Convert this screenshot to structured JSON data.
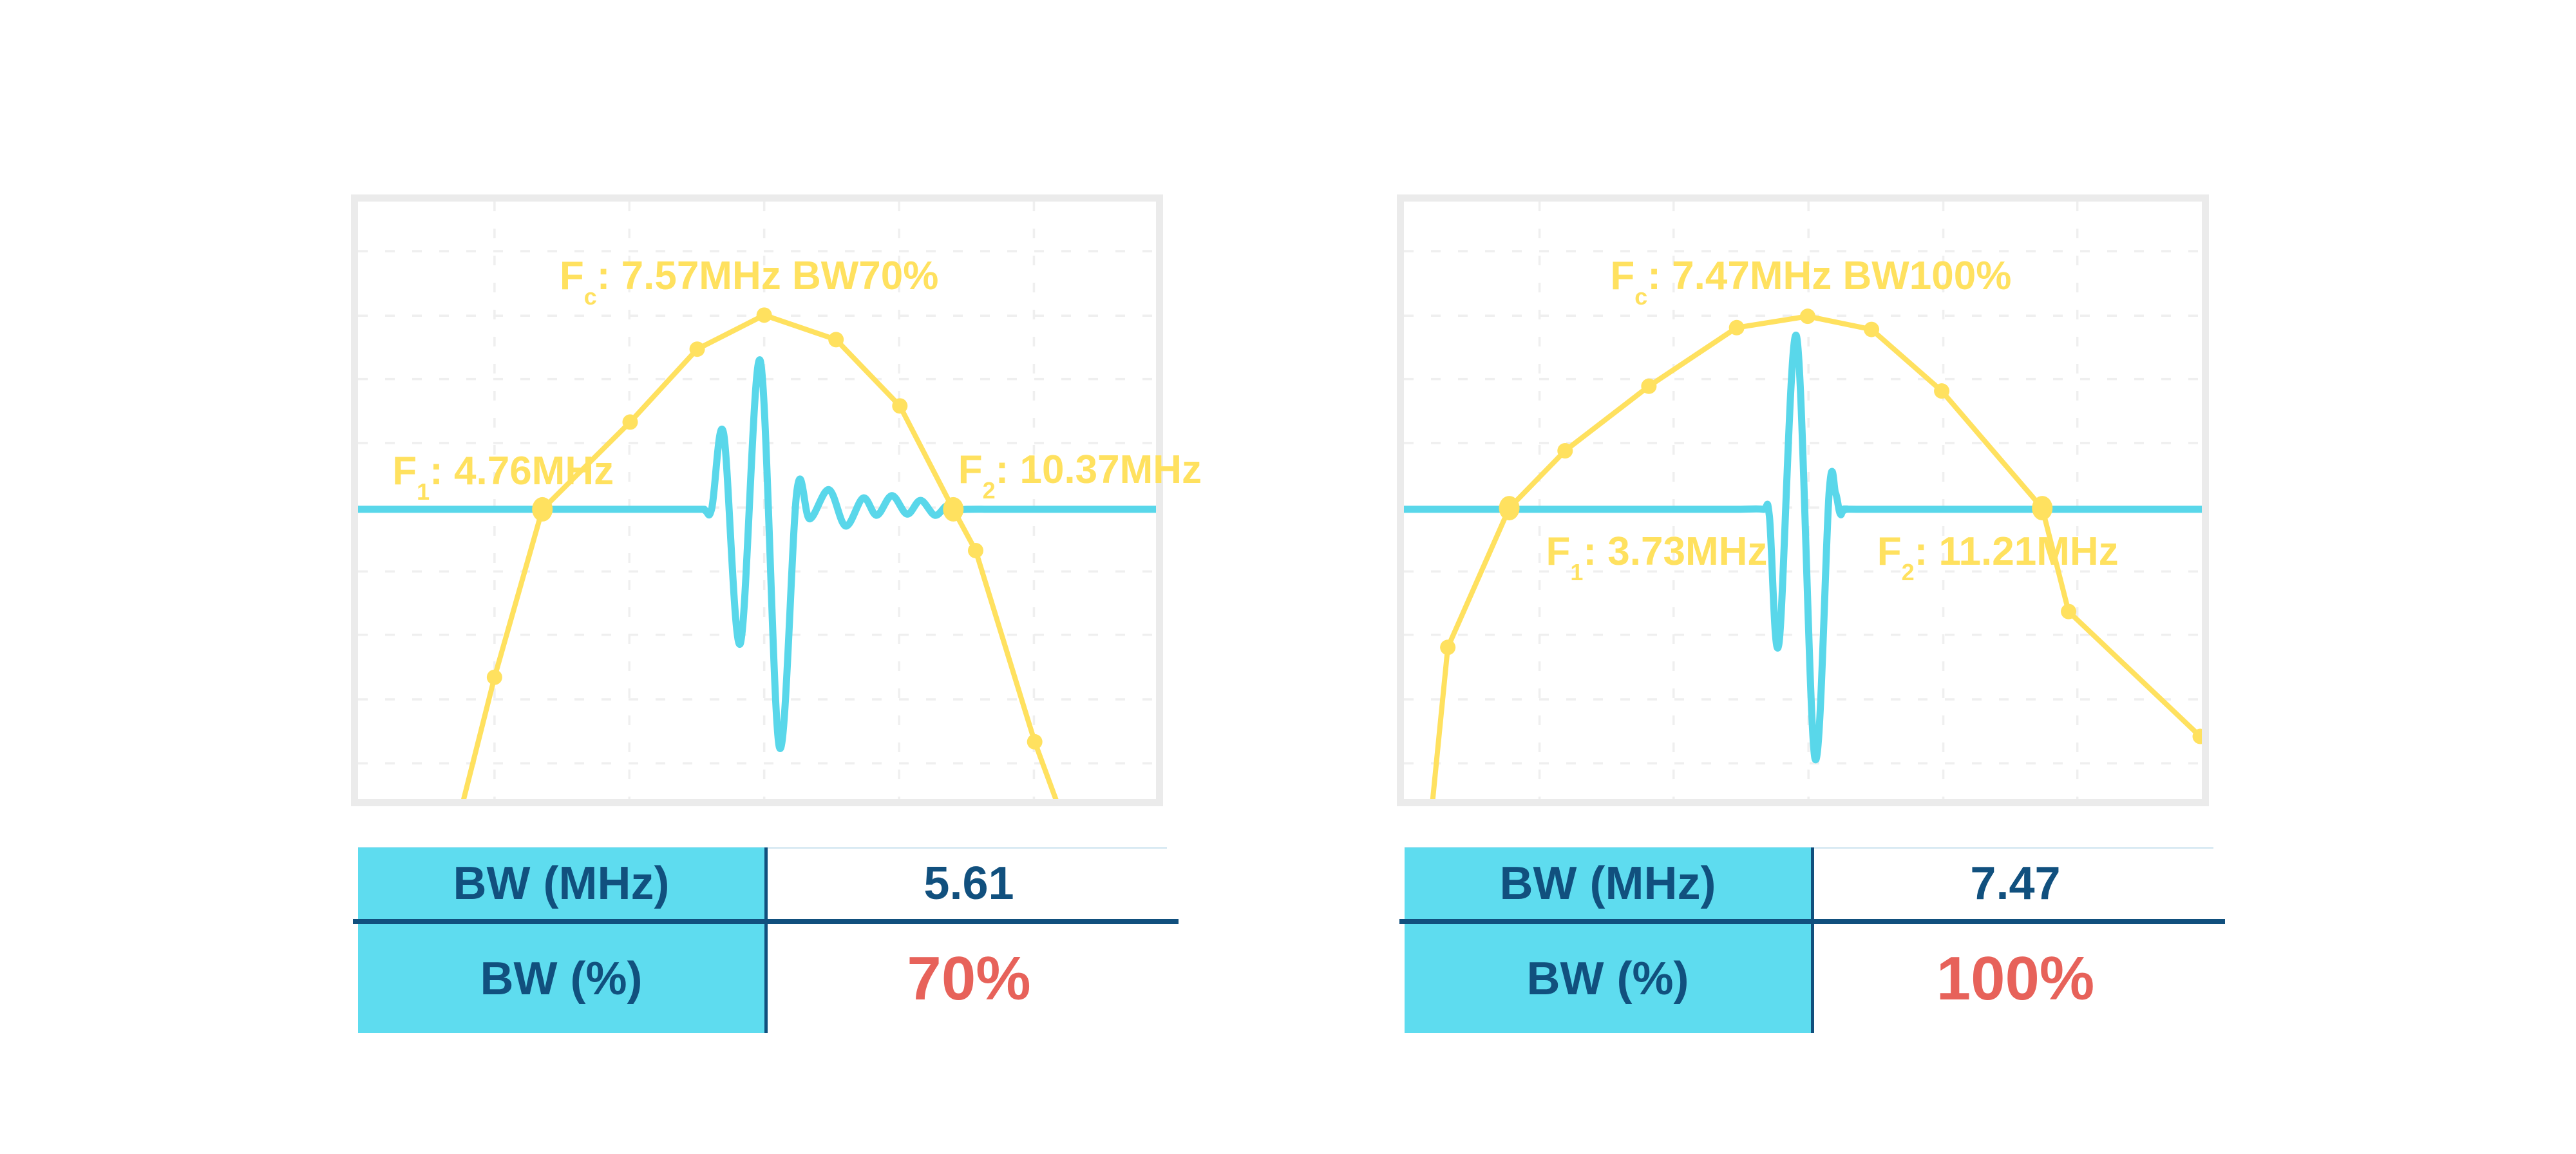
{
  "colors": {
    "yellow": "#FFE15F",
    "cyan": "#59D7EA",
    "cyanfill": "#5EDCEF",
    "navy": "#11507E",
    "red": "#E7625A",
    "border": "#EBEBEB",
    "grid": "#EFEFEF",
    "tline": "#D9EAF3"
  },
  "chart_data": [
    {
      "type": "line",
      "panel": "bw70",
      "x_unit": "MHz",
      "fc_mhz": 7.57,
      "f1_mhz": 4.76,
      "f2_mhz": 10.37,
      "bw_mhz": 5.61,
      "bw_pct": 70,
      "annotations": {
        "fc": {
          "base": "F",
          "sub": "c",
          "text": ": 7.57MHz BW70%",
          "x": 0.49,
          "y": 0.129,
          "anchor": "center"
        },
        "f1": {
          "base": "F",
          "sub": "1",
          "text": ": 4.76MHz",
          "x": 0.043,
          "y": 0.456,
          "anchor": "left"
        },
        "f2": {
          "base": "F",
          "sub": "2",
          "text": ": 10.37MHz",
          "x": 0.752,
          "y": 0.454,
          "anchor": "left"
        }
      },
      "grid": {
        "v": [
          0.171,
          0.34,
          0.509,
          0.678,
          0.847
        ],
        "h": [
          0.083,
          0.191,
          0.297,
          0.404,
          0.512,
          0.619,
          0.725,
          0.833,
          0.94
        ]
      },
      "series": [
        {
          "name": "spectrum",
          "points": [
            [
              0.132,
              1.002
            ],
            [
              0.171,
              0.796
            ],
            [
              0.231,
              0.515
            ],
            [
              0.341,
              0.369
            ],
            [
              0.425,
              0.247
            ],
            [
              0.509,
              0.19
            ],
            [
              0.599,
              0.231
            ],
            [
              0.679,
              0.342
            ],
            [
              0.746,
              0.515
            ],
            [
              0.774,
              0.584
            ],
            [
              0.848,
              0.904
            ],
            [
              0.875,
              1.002
            ]
          ],
          "dots": [
            [
              0.171,
              0.796
            ],
            [
              0.341,
              0.369
            ],
            [
              0.425,
              0.247
            ],
            [
              0.509,
              0.19
            ],
            [
              0.599,
              0.231
            ],
            [
              0.679,
              0.342
            ],
            [
              0.774,
              0.584
            ],
            [
              0.848,
              0.904
            ]
          ],
          "big_dots": [
            [
              0.231,
              0.515
            ],
            [
              0.746,
              0.515
            ]
          ]
        },
        {
          "name": "pulse_echo",
          "smooth": true,
          "points": [
            [
              0.0,
              0.515
            ],
            [
              0.39,
              0.515
            ],
            [
              0.431,
              0.515
            ],
            [
              0.443,
              0.515
            ],
            [
              0.458,
              0.387
            ],
            [
              0.479,
              0.74
            ],
            [
              0.504,
              0.266
            ],
            [
              0.528,
              0.913
            ],
            [
              0.55,
              0.484
            ],
            [
              0.566,
              0.531
            ],
            [
              0.59,
              0.482
            ],
            [
              0.611,
              0.543
            ],
            [
              0.633,
              0.496
            ],
            [
              0.65,
              0.525
            ],
            [
              0.669,
              0.492
            ],
            [
              0.688,
              0.523
            ],
            [
              0.705,
              0.5
            ],
            [
              0.723,
              0.525
            ],
            [
              0.738,
              0.509
            ],
            [
              0.75,
              0.517
            ],
            [
              0.764,
              0.515
            ],
            [
              0.82,
              0.515
            ],
            [
              1.0,
              0.515
            ]
          ]
        }
      ],
      "table": {
        "rows": [
          {
            "label": "BW (MHz)",
            "value": "5.61",
            "highlight": false
          },
          {
            "label": "BW (%)",
            "value": "70%",
            "highlight": true
          }
        ]
      }
    },
    {
      "type": "line",
      "panel": "bw100",
      "x_unit": "MHz",
      "fc_mhz": 7.47,
      "f1_mhz": 3.73,
      "f2_mhz": 11.21,
      "bw_mhz": 7.47,
      "bw_pct": 100,
      "annotations": {
        "fc": {
          "base": "F",
          "sub": "c",
          "text": ": 7.47MHz BW100%",
          "x": 0.51,
          "y": 0.129,
          "anchor": "center"
        },
        "f1": {
          "base": "F",
          "sub": "1",
          "text": ": 3.73MHz",
          "x": 0.178,
          "y": 0.59,
          "anchor": "left"
        },
        "f2": {
          "base": "F",
          "sub": "2",
          "text": ": 11.21MHz",
          "x": 0.593,
          "y": 0.59,
          "anchor": "left"
        }
      },
      "grid": {
        "v": [
          0.17,
          0.338,
          0.507,
          0.676,
          0.844
        ],
        "h": [
          0.083,
          0.191,
          0.297,
          0.404,
          0.512,
          0.619,
          0.725,
          0.833,
          0.94
        ]
      },
      "series": [
        {
          "name": "spectrum",
          "points": [
            [
              0.036,
              1.002
            ],
            [
              0.055,
              0.746
            ],
            [
              0.132,
              0.513
            ],
            [
              0.202,
              0.417
            ],
            [
              0.307,
              0.309
            ],
            [
              0.417,
              0.211
            ],
            [
              0.506,
              0.192
            ],
            [
              0.586,
              0.214
            ],
            [
              0.674,
              0.317
            ],
            [
              0.8,
              0.513
            ],
            [
              0.833,
              0.686
            ],
            [
              0.998,
              0.895
            ]
          ],
          "dots": [
            [
              0.055,
              0.746
            ],
            [
              0.202,
              0.417
            ],
            [
              0.307,
              0.309
            ],
            [
              0.417,
              0.211
            ],
            [
              0.506,
              0.192
            ],
            [
              0.586,
              0.214
            ],
            [
              0.674,
              0.317
            ],
            [
              0.833,
              0.686
            ],
            [
              0.998,
              0.895
            ]
          ],
          "big_dots": [
            [
              0.132,
              0.513
            ],
            [
              0.8,
              0.513
            ]
          ]
        },
        {
          "name": "pulse_echo",
          "smooth": true,
          "points": [
            [
              0.0,
              0.515
            ],
            [
              0.38,
              0.515
            ],
            [
              0.42,
              0.515
            ],
            [
              0.45,
              0.515
            ],
            [
              0.458,
              0.526
            ],
            [
              0.47,
              0.74
            ],
            [
              0.492,
              0.225
            ],
            [
              0.515,
              0.931
            ],
            [
              0.533,
              0.485
            ],
            [
              0.541,
              0.488
            ],
            [
              0.547,
              0.523
            ],
            [
              0.555,
              0.515
            ],
            [
              0.597,
              0.515
            ],
            [
              1.0,
              0.515
            ]
          ]
        }
      ],
      "table": {
        "rows": [
          {
            "label": "BW (MHz)",
            "value": "7.47",
            "highlight": false
          },
          {
            "label": "BW (%)",
            "value": "100%",
            "highlight": true
          }
        ]
      }
    }
  ]
}
